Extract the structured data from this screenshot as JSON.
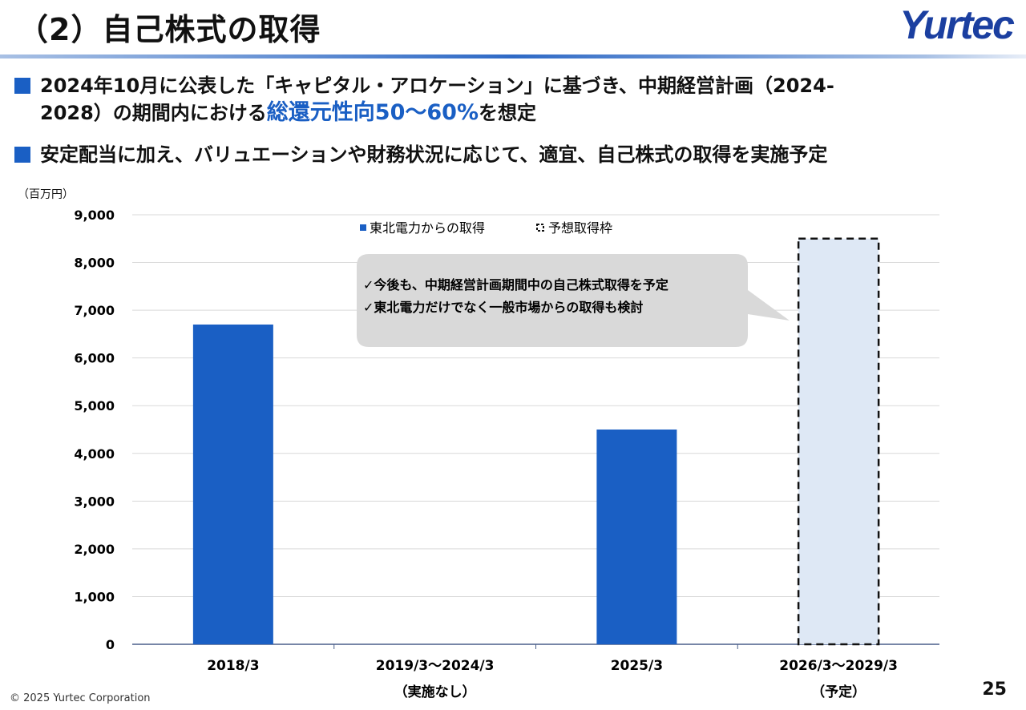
{
  "header": {
    "title": "（2）自己株式の取得",
    "logo": "Yurtec"
  },
  "bullets": [
    {
      "line1": "2024年10月に公表した「キャピタル・アロケーション」に基づき、中期経営計画（2024-",
      "line2_pre": "2028）の期間内における",
      "line2_hl": "総還元性向50～60%",
      "line2_post": "を想定"
    },
    {
      "line1": "安定配当に加え、バリュエーションや財務状況に応じて、適宜、自己株式の取得を実施予定"
    }
  ],
  "colors": {
    "accent": "#1a5fc4",
    "forecast_fill": "#dee8f5"
  },
  "chart_data": {
    "type": "bar",
    "unit_label": "（百万円）",
    "categories": [
      "2018/3",
      "2019/3～2024/3",
      "2025/3",
      "2026/3～2029/3"
    ],
    "sublabels": [
      "",
      "（実施なし）",
      "",
      "（予定）"
    ],
    "series": [
      {
        "name": "東北電力からの取得",
        "values": [
          6700,
          0,
          4500,
          null
        ]
      },
      {
        "name": "予想取得枠",
        "values": [
          null,
          null,
          null,
          8500
        ]
      }
    ],
    "ylim": [
      0,
      9000
    ],
    "yticks": [
      "0",
      "1,000",
      "2,000",
      "3,000",
      "4,000",
      "5,000",
      "6,000",
      "7,000",
      "8,000",
      "9,000"
    ],
    "grid": true,
    "legend": "top",
    "callout": [
      "✓今後も、中期経営計画期間中の自己株式取得を予定",
      "✓東北電力だけでなく一般市場からの取得も検討"
    ]
  },
  "footer": {
    "copyright": "© 2025 Yurtec Corporation",
    "page": "25"
  }
}
